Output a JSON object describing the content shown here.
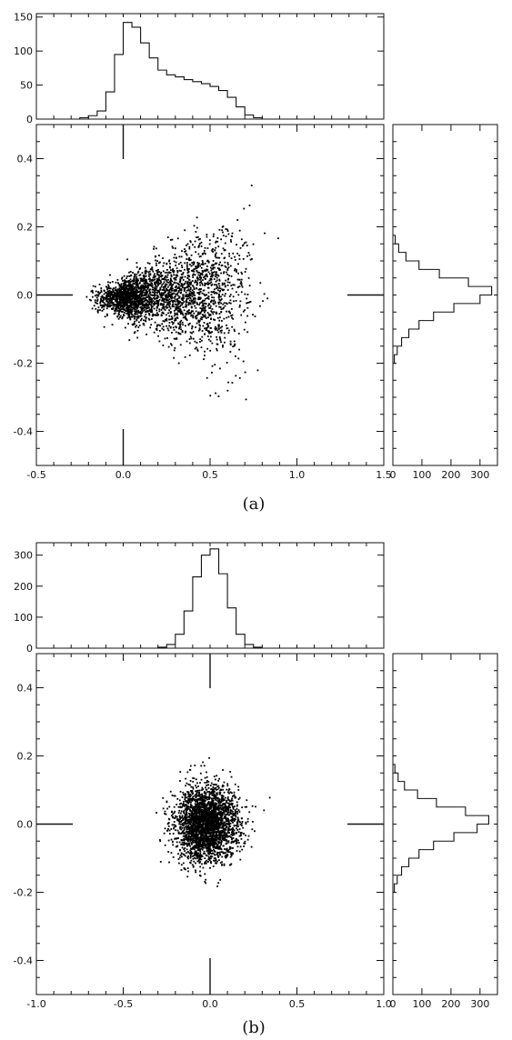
{
  "chart_data": [
    {
      "panel_label": "(a)",
      "type": "scatter",
      "scatter": {
        "xlim": [
          -0.5,
          1.5
        ],
        "ylim": [
          -0.5,
          0.5
        ],
        "xticks": [
          "-0.5",
          "0.0",
          "0.5",
          "1.0",
          "1.5"
        ],
        "xtick_values": [
          -0.5,
          0.0,
          0.5,
          1.0,
          1.5
        ],
        "yticks": [
          "0.4",
          "0.2",
          "0.0",
          "-0.2",
          "-0.4"
        ],
        "ytick_values": [
          0.4,
          0.2,
          0.0,
          -0.2,
          -0.4
        ],
        "reference_marks": {
          "x": 0.0,
          "y": 0.0
        },
        "clusters": [
          {
            "cx": 0.02,
            "cy": -0.01,
            "sx": 0.08,
            "sy": 0.035,
            "n": 1100
          },
          {
            "cx": 0.25,
            "cy": 0.0,
            "sx": 0.12,
            "sy": 0.06,
            "n": 900
          },
          {
            "cx": 0.5,
            "cy": 0.0,
            "sx": 0.12,
            "sy": 0.075,
            "n": 800
          }
        ]
      },
      "top_histogram": {
        "ylim": [
          0,
          155
        ],
        "yticks": [
          "0",
          "50",
          "100",
          "150"
        ],
        "ytick_values": [
          0,
          50,
          100,
          150
        ],
        "bin_edges_x": [
          -0.25,
          -0.2,
          -0.15,
          -0.1,
          -0.05,
          0.0,
          0.05,
          0.1,
          0.15,
          0.2,
          0.25,
          0.3,
          0.35,
          0.4,
          0.45,
          0.5,
          0.55,
          0.6,
          0.65,
          0.7,
          0.75,
          0.8
        ],
        "counts": [
          2,
          5,
          12,
          40,
          95,
          142,
          135,
          112,
          90,
          72,
          65,
          62,
          58,
          55,
          52,
          48,
          42,
          32,
          18,
          6,
          2
        ]
      },
      "right_histogram": {
        "xlim": [
          0,
          360
        ],
        "xticks": [
          "0",
          "100",
          "200",
          "300"
        ],
        "xtick_values": [
          0,
          100,
          200,
          300
        ],
        "bin_edges_y": [
          -0.2,
          -0.175,
          -0.15,
          -0.125,
          -0.1,
          -0.075,
          -0.05,
          -0.025,
          0.0,
          0.025,
          0.05,
          0.075,
          0.1,
          0.125,
          0.15,
          0.175
        ],
        "counts": [
          5,
          15,
          30,
          55,
          90,
          140,
          210,
          300,
          340,
          260,
          160,
          90,
          45,
          20,
          8
        ]
      }
    },
    {
      "panel_label": "(b)",
      "type": "scatter",
      "scatter": {
        "xlim": [
          -1.0,
          1.0
        ],
        "ylim": [
          -0.5,
          0.5
        ],
        "xticks": [
          "-1.0",
          "-0.5",
          "0.0",
          "0.5",
          "1.0"
        ],
        "xtick_values": [
          -1.0,
          -0.5,
          0.0,
          0.5,
          1.0
        ],
        "yticks": [
          "0.4",
          "0.2",
          "0.0",
          "-0.2",
          "-0.4"
        ],
        "ytick_values": [
          0.4,
          0.2,
          0.0,
          -0.2,
          -0.4
        ],
        "reference_marks": {
          "x": 0.0,
          "y": 0.0
        },
        "clusters": [
          {
            "cx": -0.02,
            "cy": 0.0,
            "sx": 0.09,
            "sy": 0.055,
            "n": 2800
          }
        ]
      },
      "top_histogram": {
        "ylim": [
          0,
          340
        ],
        "yticks": [
          "0",
          "100",
          "200",
          "300"
        ],
        "ytick_values": [
          0,
          100,
          200,
          300
        ],
        "bin_edges_x": [
          -0.3,
          -0.25,
          -0.2,
          -0.15,
          -0.1,
          -0.05,
          0.0,
          0.05,
          0.1,
          0.15,
          0.2,
          0.25,
          0.3
        ],
        "counts": [
          3,
          12,
          45,
          120,
          230,
          300,
          320,
          240,
          130,
          45,
          12,
          3
        ]
      },
      "right_histogram": {
        "xlim": [
          0,
          360
        ],
        "xticks": [
          "0",
          "100",
          "200",
          "300"
        ],
        "xtick_values": [
          0,
          100,
          200,
          300
        ],
        "bin_edges_y": [
          -0.2,
          -0.175,
          -0.15,
          -0.125,
          -0.1,
          -0.075,
          -0.05,
          -0.025,
          0.0,
          0.025,
          0.05,
          0.075,
          0.1,
          0.125,
          0.15,
          0.175
        ],
        "counts": [
          5,
          15,
          30,
          55,
          90,
          140,
          210,
          290,
          330,
          250,
          150,
          85,
          40,
          18,
          7
        ]
      }
    }
  ]
}
